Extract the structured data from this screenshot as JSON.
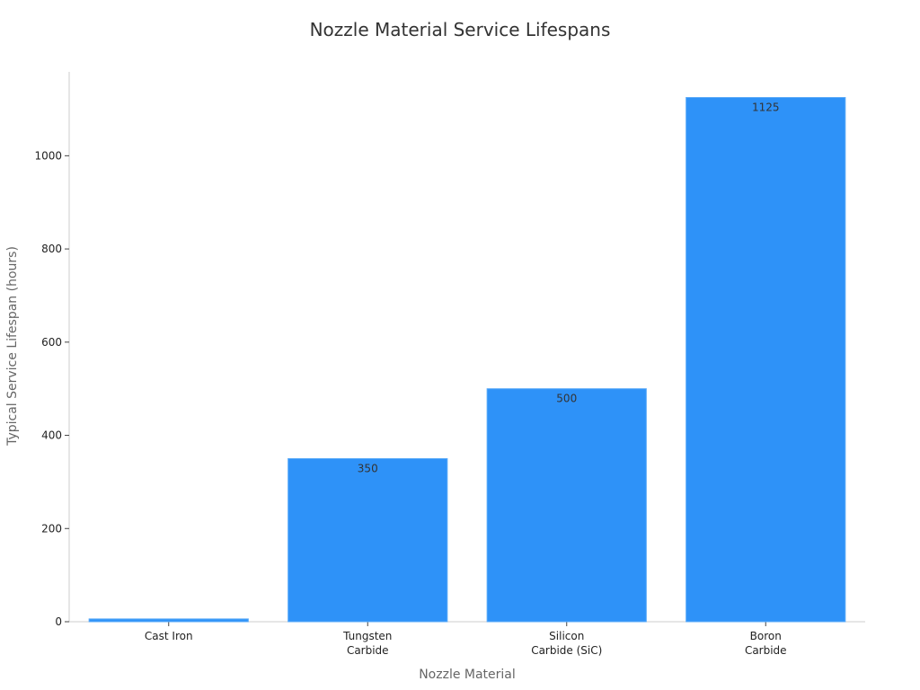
{
  "chart_data": {
    "type": "bar",
    "title": "Nozzle Material Service Lifespans",
    "xlabel": "Nozzle Material",
    "ylabel": "Typical Service Lifespan (hours)",
    "categories": [
      [
        "Cast Iron"
      ],
      [
        "Tungsten",
        "Carbide"
      ],
      [
        "Silicon",
        "Carbide (SiC)"
      ],
      [
        "Boron",
        "Carbide"
      ]
    ],
    "values": [
      6,
      350,
      500,
      1125
    ],
    "data_labels": [
      "",
      "350",
      "500",
      "1125"
    ],
    "ylim": [
      0,
      1180
    ],
    "yticks": [
      0,
      200,
      400,
      600,
      800,
      1000
    ],
    "bar_color": "#2e92f8",
    "grid": false
  }
}
